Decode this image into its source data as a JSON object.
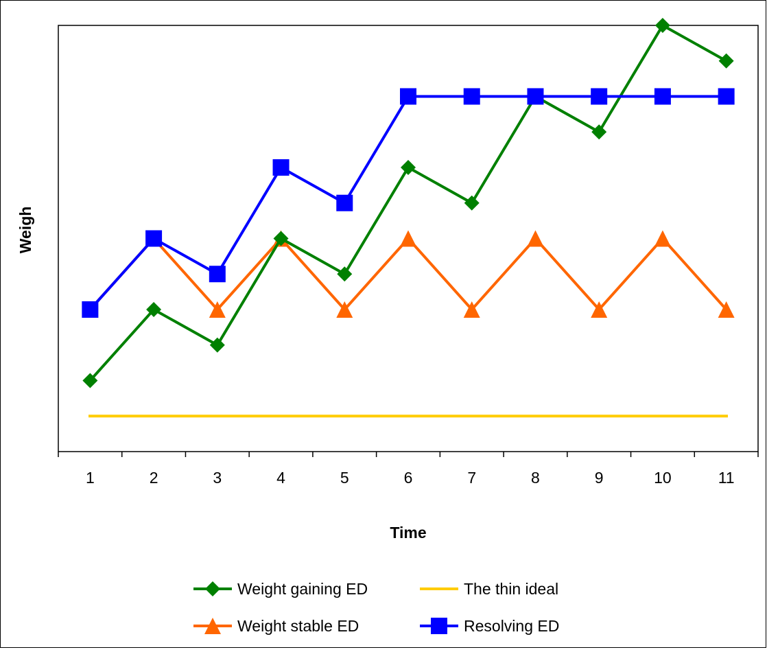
{
  "chart_data": {
    "type": "line",
    "title": "",
    "xlabel": "Time",
    "ylabel": "Weigh",
    "categories": [
      "1",
      "2",
      "3",
      "4",
      "5",
      "6",
      "7",
      "8",
      "9",
      "10",
      "11"
    ],
    "ylim": [
      0,
      12
    ],
    "y_ticks_shown": false,
    "grid": false,
    "legend_position": "bottom",
    "series": [
      {
        "name": "Weight gaining ED",
        "color": "#008000",
        "marker": "diamond",
        "values": [
          2,
          4,
          3,
          6,
          5,
          8,
          7,
          10,
          9,
          12,
          11
        ]
      },
      {
        "name": "The thin ideal",
        "color": "#FFCC00",
        "marker": "none",
        "values": [
          1,
          1,
          1,
          1,
          1,
          1,
          1,
          1,
          1,
          1,
          1
        ]
      },
      {
        "name": "Weight stable ED",
        "color": "#FF6600",
        "marker": "triangle",
        "values": [
          4,
          6,
          4,
          6,
          4,
          6,
          4,
          6,
          4,
          6,
          4
        ]
      },
      {
        "name": "Resolving ED",
        "color": "#0000FF",
        "marker": "square",
        "values": [
          4,
          6,
          5,
          8,
          7,
          10,
          10,
          10,
          10,
          10,
          10
        ]
      }
    ]
  }
}
